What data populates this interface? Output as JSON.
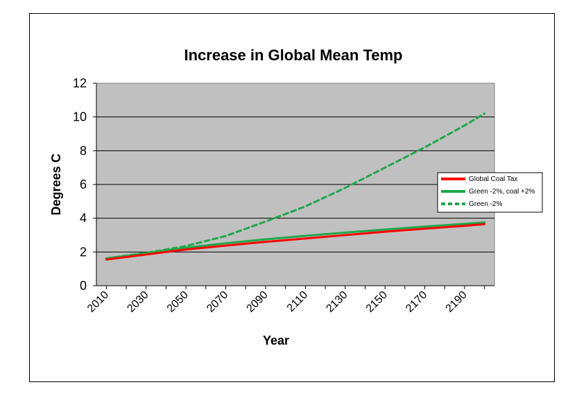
{
  "chart_data": {
    "type": "line",
    "title": "Increase in Global Mean Temp",
    "xlabel": "Year",
    "ylabel": "Degrees C",
    "xlim": [
      2005,
      2205
    ],
    "ylim": [
      0,
      12
    ],
    "yticks": [
      0,
      2,
      4,
      6,
      8,
      10,
      12
    ],
    "xtick_labels": [
      "2010",
      "2030",
      "2050",
      "2070",
      "2090",
      "2110",
      "2130",
      "2150",
      "2170",
      "2190"
    ],
    "grid": true,
    "legend_position": "right",
    "colors": {
      "plot_bg": "#c0c0c0",
      "red": "#ff0000",
      "green": "#1fa84a"
    },
    "x": [
      2010,
      2030,
      2050,
      2070,
      2090,
      2110,
      2130,
      2150,
      2170,
      2190,
      2200
    ],
    "series": [
      {
        "name": "Global Coal Tax",
        "color": "#ff0000",
        "dash": "solid",
        "values": [
          1.55,
          1.85,
          2.15,
          2.38,
          2.6,
          2.8,
          3.0,
          3.2,
          3.38,
          3.55,
          3.65
        ]
      },
      {
        "name": "Green -2%, coal +2%",
        "color": "#1fa84a",
        "dash": "solid",
        "values": [
          1.62,
          1.92,
          2.25,
          2.52,
          2.75,
          2.96,
          3.15,
          3.33,
          3.5,
          3.67,
          3.75
        ]
      },
      {
        "name": "Green -2%",
        "color": "#1fa84a",
        "dash": "dashed",
        "values": [
          1.62,
          1.95,
          2.35,
          2.95,
          3.8,
          4.7,
          5.8,
          7.0,
          8.2,
          9.5,
          10.2
        ]
      }
    ]
  }
}
